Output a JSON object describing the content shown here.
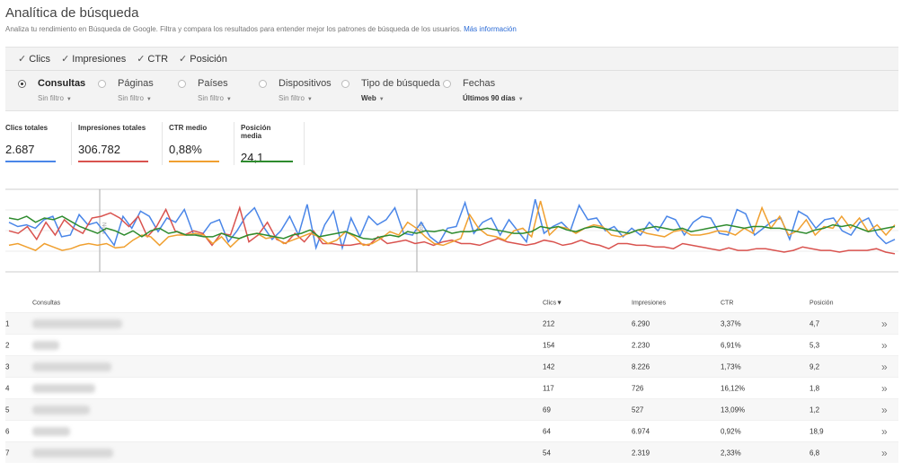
{
  "header": {
    "title": "Analítica de búsqueda",
    "subtitle": "Analiza tu rendimiento en Búsqueda de Google. Filtra y compara los resultados para entender mejor los patrones de búsqueda de los usuarios.",
    "link": "Más información"
  },
  "metrics": [
    {
      "label": "Clics",
      "checked": true
    },
    {
      "label": "Impresiones",
      "checked": true
    },
    {
      "label": "CTR",
      "checked": true
    },
    {
      "label": "Posición",
      "checked": true
    }
  ],
  "dimensions": [
    {
      "label": "Consultas",
      "filter": "Sin filtro",
      "selected": true
    },
    {
      "label": "Páginas",
      "filter": "Sin filtro",
      "selected": false
    },
    {
      "label": "Países",
      "filter": "Sin filtro",
      "selected": false
    },
    {
      "label": "Dispositivos",
      "filter": "Sin filtro",
      "selected": false
    },
    {
      "label": "Tipo de búsqueda",
      "filter": "Web",
      "selected": false
    },
    {
      "label": "Fechas",
      "filter": "Últimos 90 días",
      "selected": false
    }
  ],
  "check_glyph": "✓",
  "totals": [
    {
      "label": "Clics totales",
      "value": "2.687",
      "color": "#4a86e8"
    },
    {
      "label": "Impresiones totales",
      "value": "306.782",
      "color": "#d9534f"
    },
    {
      "label": "CTR medio",
      "value": "0,88%",
      "color": "#f0a030"
    },
    {
      "label": "Posición media",
      "value": "24,1",
      "color": "#2e8b2e"
    }
  ],
  "chart_data": {
    "type": "line",
    "annotation": "Nota",
    "series": [
      {
        "color": "#4a86e8",
        "values": [
          55,
          50,
          52,
          48,
          58,
          62,
          38,
          40,
          64,
          52,
          55,
          42,
          28,
          62,
          48,
          68,
          62,
          44,
          60,
          55,
          70,
          42,
          40,
          54,
          58,
          32,
          45,
          62,
          72,
          50,
          35,
          45,
          62,
          40,
          76,
          25,
          52,
          68,
          25,
          60,
          38,
          62,
          52,
          58,
          72,
          42,
          40,
          55,
          38,
          30,
          48,
          50,
          78,
          42,
          55,
          60,
          40,
          58,
          45,
          32,
          82,
          42,
          50,
          55,
          45,
          75,
          58,
          60,
          45,
          50,
          38,
          48,
          40,
          55,
          45,
          62,
          58,
          40,
          55,
          62,
          60,
          42,
          40,
          70,
          65,
          40,
          48,
          56,
          60,
          35,
          68,
          62,
          48,
          58,
          60,
          45,
          40,
          55,
          60,
          40,
          30,
          35
        ]
      },
      {
        "color": "#d9534f",
        "values": [
          45,
          42,
          50,
          35,
          55,
          40,
          58,
          48,
          42,
          60,
          62,
          66,
          60,
          50,
          62,
          38,
          50,
          70,
          45,
          40,
          45,
          42,
          28,
          42,
          40,
          72,
          32,
          40,
          55,
          35,
          30,
          42,
          32,
          45,
          30,
          30,
          28,
          28,
          30,
          28,
          38,
          30,
          32,
          34,
          30,
          32,
          28,
          32,
          34,
          30,
          30,
          28,
          32,
          36,
          32,
          30,
          28,
          30,
          34,
          32,
          28,
          30,
          34,
          30,
          28,
          24,
          30,
          30,
          28,
          28,
          26,
          26,
          24,
          30,
          28,
          26,
          24,
          22,
          25,
          22,
          22,
          24,
          24,
          22,
          20,
          22,
          26,
          24,
          22,
          22,
          20,
          22,
          22,
          22,
          24,
          20,
          18
        ]
      },
      {
        "color": "#f0a030",
        "values": [
          28,
          30,
          26,
          22,
          30,
          26,
          22,
          24,
          28,
          30,
          28,
          30,
          25,
          26,
          34,
          40,
          38,
          28,
          38,
          40,
          40,
          42,
          40,
          30,
          38,
          26,
          36,
          40,
          42,
          36,
          38,
          30,
          34,
          38,
          42,
          38,
          30,
          34,
          44,
          38,
          28,
          30,
          36,
          44,
          40,
          55,
          48,
          38,
          30,
          28,
          32,
          36,
          64,
          48,
          40,
          38,
          34,
          45,
          48,
          38,
          80,
          40,
          50,
          48,
          42,
          48,
          52,
          50,
          40,
          38,
          42,
          46,
          42,
          40,
          38,
          44,
          46,
          40,
          40,
          42,
          45,
          44,
          40,
          48,
          42,
          72,
          48,
          62,
          40,
          45,
          58,
          40,
          50,
          48,
          62,
          48,
          60,
          44,
          52,
          40,
          52
        ]
      },
      {
        "color": "#2e8b2e",
        "values": [
          60,
          58,
          62,
          55,
          60,
          58,
          62,
          56,
          50,
          46,
          42,
          48,
          45,
          40,
          45,
          38,
          45,
          48,
          42,
          44,
          40,
          40,
          38,
          38,
          42,
          38,
          36,
          40,
          42,
          40,
          38,
          36,
          40,
          42,
          46,
          38,
          40,
          42,
          44,
          40,
          36,
          35,
          38,
          40,
          38,
          44,
          42,
          45,
          44,
          46,
          42,
          44,
          44,
          46,
          48,
          46,
          44,
          42,
          42,
          44,
          50,
          48,
          50,
          46,
          44,
          48,
          50,
          48,
          46,
          44,
          42,
          46,
          48,
          50,
          48,
          46,
          48,
          44,
          46,
          48,
          50,
          52,
          50,
          48,
          50,
          50,
          48,
          48,
          46,
          44,
          42,
          46,
          48,
          52,
          50,
          52,
          48,
          44,
          46,
          48,
          50
        ]
      }
    ]
  },
  "table": {
    "headers": {
      "query": "Consultas",
      "clicks": "Clics▼",
      "impressions": "Impresiones",
      "ctr": "CTR",
      "position": "Posición"
    },
    "rows": [
      {
        "n": "1",
        "clicks": "212",
        "impressions": "6.290",
        "ctr": "3,37%",
        "position": "4,7"
      },
      {
        "n": "2",
        "clicks": "154",
        "impressions": "2.230",
        "ctr": "6,91%",
        "position": "5,3"
      },
      {
        "n": "3",
        "clicks": "142",
        "impressions": "8.226",
        "ctr": "1,73%",
        "position": "9,2"
      },
      {
        "n": "4",
        "clicks": "117",
        "impressions": "726",
        "ctr": "16,12%",
        "position": "1,8"
      },
      {
        "n": "5",
        "clicks": "69",
        "impressions": "527",
        "ctr": "13,09%",
        "position": "1,2"
      },
      {
        "n": "6",
        "clicks": "64",
        "impressions": "6.974",
        "ctr": "0,92%",
        "position": "18,9"
      },
      {
        "n": "7",
        "clicks": "54",
        "impressions": "2.319",
        "ctr": "2,33%",
        "position": "6,8"
      }
    ],
    "expand_glyph": "»"
  }
}
